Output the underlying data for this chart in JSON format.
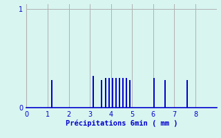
{
  "bar_positions": [
    1.2,
    3.15,
    3.55,
    3.75,
    3.92,
    4.08,
    4.24,
    4.4,
    4.56,
    4.72,
    4.88,
    6.05,
    6.55,
    7.6
  ],
  "bar_heights": [
    0.28,
    0.32,
    0.28,
    0.3,
    0.3,
    0.3,
    0.3,
    0.3,
    0.3,
    0.3,
    0.28,
    0.3,
    0.28,
    0.28
  ],
  "xlim": [
    0,
    9.0
  ],
  "ylim": [
    0,
    1.05
  ],
  "yticks": [
    0,
    1
  ],
  "xticks": [
    0,
    1,
    2,
    3,
    4,
    5,
    6,
    7,
    8
  ],
  "xlabel": "Précipitations 6min ( mm )",
  "bar_color": "#0000cc",
  "bg_color": "#d8f5f0",
  "grid_color": "#b0b0b0",
  "axis_color": "#0000cc",
  "tick_color": "#0000cc",
  "label_color": "#0000cc",
  "bar_width": 0.06,
  "vgrid_positions": [
    0,
    1,
    2,
    3,
    4,
    5,
    6,
    7,
    8
  ]
}
